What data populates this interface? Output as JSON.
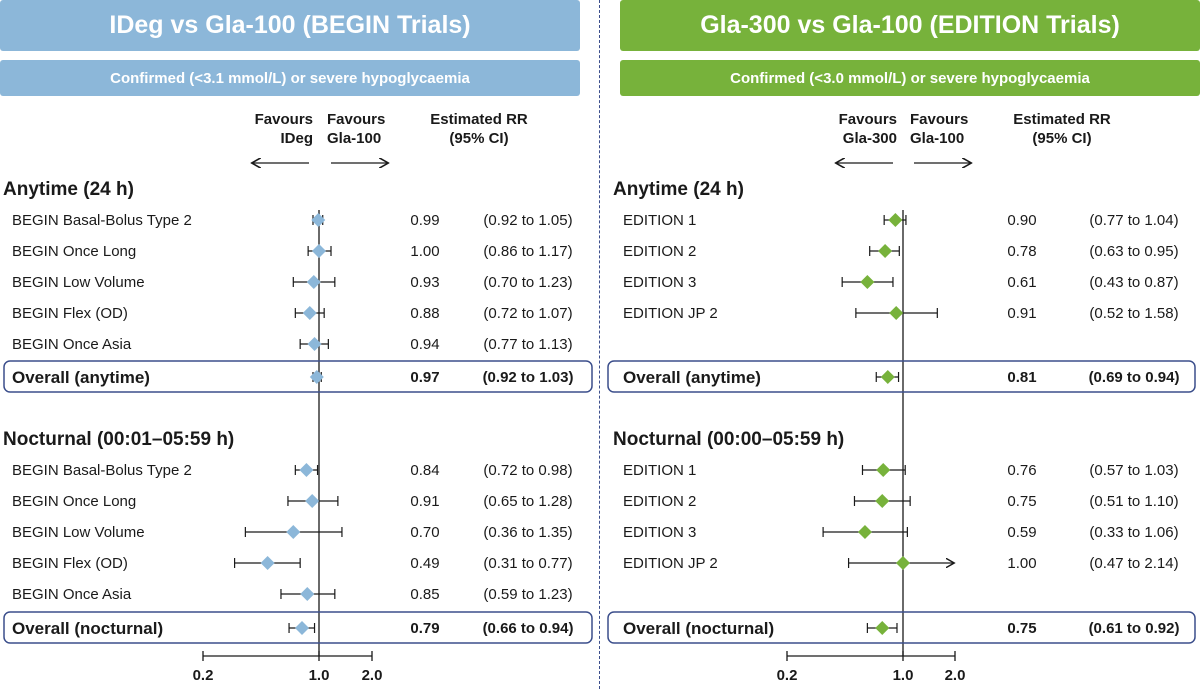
{
  "colors": {
    "left_accent": "#8cb7d9",
    "right_accent": "#77b23b",
    "box_border": "#3c4f8c",
    "axis": "#1a1a1a"
  },
  "panels": [
    {
      "title": "IDeg vs Gla-100 (BEGIN Trials)",
      "subtitle": "Confirmed (<3.1 mmol/L) or severe hypoglycaemia",
      "favours_left": [
        "Favours",
        "IDeg"
      ],
      "favours_right": [
        "Favours",
        "Gla-100"
      ],
      "rr_header": [
        "Estimated RR",
        "(95% CI)"
      ]
    },
    {
      "title": "Gla-300 vs Gla-100 (EDITION Trials)",
      "subtitle": "Confirmed (<3.0 mmol/L) or severe hypoglycaemia",
      "favours_left": [
        "Favours",
        "Gla-300"
      ],
      "favours_right": [
        "Favours",
        "Gla-100"
      ],
      "rr_header": [
        "Estimated RR",
        "(95% CI)"
      ]
    }
  ],
  "chart_data": [
    {
      "type": "forest",
      "title": "IDeg vs Gla-100 (BEGIN Trials)",
      "subtitle": "Confirmed (<3.1 mmol/L) or severe hypoglycaemia",
      "x_scale": "log",
      "xlim": [
        0.2,
        2.0
      ],
      "x_ticks": [
        {
          "value": 0.2,
          "label": "0.2"
        },
        {
          "value": 1.0,
          "label": "1.0"
        },
        {
          "value": 2.0,
          "label": "2.0"
        }
      ],
      "reference_line": 1.0,
      "sections": [
        {
          "heading": "Anytime (24 h)",
          "rows": [
            {
              "label": "BEGIN Basal-Bolus Type 2",
              "rr": 0.99,
              "lo": 0.92,
              "hi": 1.05,
              "rr_text": "0.99",
              "ci_text": "(0.92 to 1.05)"
            },
            {
              "label": "BEGIN Once Long",
              "rr": 1.0,
              "lo": 0.86,
              "hi": 1.17,
              "rr_text": "1.00",
              "ci_text": "(0.86 to 1.17)"
            },
            {
              "label": "BEGIN Low Volume",
              "rr": 0.93,
              "lo": 0.7,
              "hi": 1.23,
              "rr_text": "0.93",
              "ci_text": "(0.70 to 1.23)"
            },
            {
              "label": "BEGIN Flex (OD)",
              "rr": 0.88,
              "lo": 0.72,
              "hi": 1.07,
              "rr_text": "0.88",
              "ci_text": "(0.72 to 1.07)"
            },
            {
              "label": "BEGIN Once Asia",
              "rr": 0.94,
              "lo": 0.77,
              "hi": 1.13,
              "rr_text": "0.94",
              "ci_text": "(0.77 to 1.13)"
            }
          ],
          "overall": {
            "label": "Overall (anytime)",
            "rr": 0.97,
            "lo": 0.92,
            "hi": 1.03,
            "rr_text": "0.97",
            "ci_text": "(0.92 to 1.03)"
          }
        },
        {
          "heading": "Nocturnal (00:01–05:59 h)",
          "rows": [
            {
              "label": "BEGIN Basal-Bolus Type 2",
              "rr": 0.84,
              "lo": 0.72,
              "hi": 0.98,
              "rr_text": "0.84",
              "ci_text": "(0.72 to 0.98)"
            },
            {
              "label": "BEGIN Once Long",
              "rr": 0.91,
              "lo": 0.65,
              "hi": 1.28,
              "rr_text": "0.91",
              "ci_text": "(0.65 to 1.28)"
            },
            {
              "label": "BEGIN Low Volume",
              "rr": 0.7,
              "lo": 0.36,
              "hi": 1.35,
              "rr_text": "0.70",
              "ci_text": "(0.36 to 1.35)"
            },
            {
              "label": "BEGIN Flex (OD)",
              "rr": 0.49,
              "lo": 0.31,
              "hi": 0.77,
              "rr_text": "0.49",
              "ci_text": "(0.31 to 0.77)"
            },
            {
              "label": "BEGIN Once Asia",
              "rr": 0.85,
              "lo": 0.59,
              "hi": 1.23,
              "rr_text": "0.85",
              "ci_text": "(0.59 to 1.23)"
            }
          ],
          "overall": {
            "label": "Overall (nocturnal)",
            "rr": 0.79,
            "lo": 0.66,
            "hi": 0.94,
            "rr_text": "0.79",
            "ci_text": "(0.66 to 0.94)"
          }
        }
      ]
    },
    {
      "type": "forest",
      "title": "Gla-300 vs Gla-100 (EDITION Trials)",
      "subtitle": "Confirmed (<3.0 mmol/L) or severe hypoglycaemia",
      "x_scale": "log",
      "xlim": [
        0.2,
        2.0
      ],
      "x_ticks": [
        {
          "value": 0.2,
          "label": "0.2"
        },
        {
          "value": 1.0,
          "label": "1.0"
        },
        {
          "value": 2.0,
          "label": "2.0"
        }
      ],
      "reference_line": 1.0,
      "sections": [
        {
          "heading": "Anytime (24 h)",
          "rows": [
            {
              "label": "EDITION 1",
              "rr": 0.9,
              "lo": 0.77,
              "hi": 1.04,
              "rr_text": "0.90",
              "ci_text": "(0.77 to 1.04)"
            },
            {
              "label": "EDITION 2",
              "rr": 0.78,
              "lo": 0.63,
              "hi": 0.95,
              "rr_text": "0.78",
              "ci_text": "(0.63 to 0.95)"
            },
            {
              "label": "EDITION 3",
              "rr": 0.61,
              "lo": 0.43,
              "hi": 0.87,
              "rr_text": "0.61",
              "ci_text": "(0.43 to 0.87)"
            },
            {
              "label": "EDITION JP 2",
              "rr": 0.91,
              "lo": 0.52,
              "hi": 1.58,
              "rr_text": "0.91",
              "ci_text": "(0.52 to 1.58)"
            }
          ],
          "overall": {
            "label": "Overall (anytime)",
            "rr": 0.81,
            "lo": 0.69,
            "hi": 0.94,
            "rr_text": "0.81",
            "ci_text": "(0.69 to 0.94)"
          }
        },
        {
          "heading": "Nocturnal (00:00–05:59 h)",
          "rows": [
            {
              "label": "EDITION 1",
              "rr": 0.76,
              "lo": 0.57,
              "hi": 1.03,
              "rr_text": "0.76",
              "ci_text": "(0.57 to 1.03)"
            },
            {
              "label": "EDITION 2",
              "rr": 0.75,
              "lo": 0.51,
              "hi": 1.1,
              "rr_text": "0.75",
              "ci_text": "(0.51 to 1.10)"
            },
            {
              "label": "EDITION 3",
              "rr": 0.59,
              "lo": 0.33,
              "hi": 1.06,
              "rr_text": "0.59",
              "ci_text": "(0.33 to 1.06)"
            },
            {
              "label": "EDITION JP 2",
              "rr": 1.0,
              "lo": 0.47,
              "hi": 2.14,
              "rr_text": "1.00",
              "ci_text": "(0.47 to 2.14)",
              "arrow_right": true
            }
          ],
          "overall": {
            "label": "Overall (nocturnal)",
            "rr": 0.75,
            "lo": 0.61,
            "hi": 0.92,
            "rr_text": "0.75",
            "ci_text": "(0.61 to 0.92)"
          }
        }
      ]
    }
  ]
}
